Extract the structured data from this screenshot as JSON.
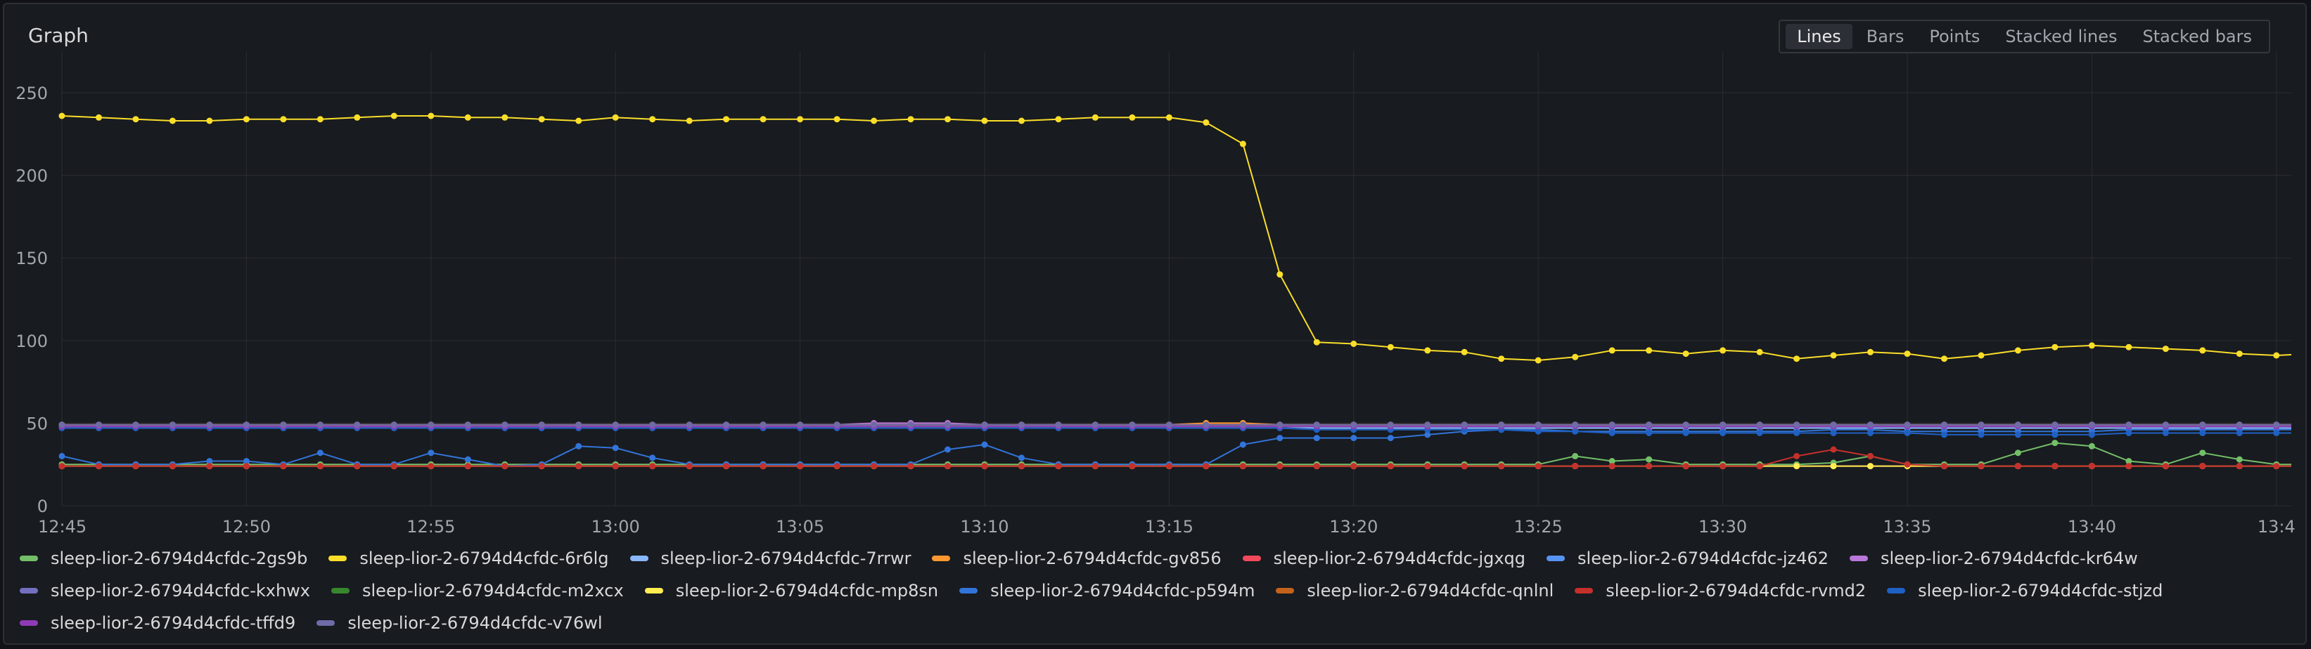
{
  "panel": {
    "title": "Graph"
  },
  "view_modes": [
    {
      "label": "Lines",
      "active": true
    },
    {
      "label": "Bars",
      "active": false
    },
    {
      "label": "Points",
      "active": false
    },
    {
      "label": "Stacked lines",
      "active": false
    },
    {
      "label": "Stacked bars",
      "active": false
    }
  ],
  "chart_data": {
    "type": "line",
    "title": "",
    "xlabel": "",
    "ylabel": "",
    "ylim": [
      0,
      270
    ],
    "y_ticks": [
      0,
      50,
      100,
      150,
      200,
      250
    ],
    "x_range": [
      "12:45",
      "13:44"
    ],
    "x_tick_labels": [
      "12:45",
      "12:50",
      "12:55",
      "13:00",
      "13:05",
      "13:10",
      "13:15",
      "13:20",
      "13:25",
      "13:30",
      "13:35",
      "13:40",
      "13:4"
    ],
    "x_interval_minutes": 1,
    "grid": true,
    "legend_position": "bottom",
    "series": [
      {
        "name": "sleep-lior-2-6794d4cfdc-2gs9b",
        "color": "#73bf69",
        "values": [
          25,
          25,
          25,
          25,
          25,
          25,
          25,
          25,
          25,
          25,
          25,
          25,
          25,
          25,
          25,
          25,
          25,
          25,
          25,
          25,
          25,
          25,
          25,
          25,
          25,
          25,
          25,
          25,
          25,
          25,
          25,
          25,
          25,
          25,
          25,
          25,
          25,
          25,
          25,
          25,
          25,
          30,
          27,
          28,
          25,
          25,
          25,
          25,
          26,
          30,
          25,
          25,
          25,
          32,
          38,
          36,
          27,
          25,
          32,
          28,
          25,
          25,
          25,
          25,
          25,
          25
        ]
      },
      {
        "name": "sleep-lior-2-6794d4cfdc-6r6lg",
        "color": "#fade2a",
        "values": [
          236,
          235,
          234,
          233,
          233,
          234,
          234,
          234,
          235,
          236,
          236,
          235,
          235,
          234,
          233,
          235,
          234,
          233,
          234,
          234,
          234,
          234,
          233,
          234,
          234,
          233,
          233,
          234,
          235,
          235,
          235,
          232,
          219,
          140,
          99,
          98,
          96,
          94,
          93,
          89,
          88,
          90,
          94,
          94,
          92,
          94,
          93,
          89,
          91,
          93,
          92,
          89,
          91,
          94,
          96,
          97,
          96,
          95,
          94,
          92,
          91,
          92,
          93,
          92,
          91,
          91
        ]
      },
      {
        "name": "sleep-lior-2-6794d4cfdc-7rrwr",
        "color": "#8ab8ff",
        "values": [
          48,
          48,
          48,
          48,
          48,
          48,
          48,
          48,
          48,
          48,
          48,
          48,
          48,
          48,
          48,
          48,
          48,
          48,
          48,
          48,
          48,
          48,
          48,
          48,
          48,
          48,
          48,
          48,
          48,
          48,
          48,
          48,
          48,
          48,
          47,
          47,
          47,
          47,
          47,
          47,
          47,
          47,
          47,
          47,
          47,
          47,
          47,
          47,
          47,
          47,
          47,
          47,
          47,
          47,
          47,
          47,
          47,
          47,
          47,
          47,
          47,
          47,
          47,
          47,
          47,
          47
        ]
      },
      {
        "name": "sleep-lior-2-6794d4cfdc-gv856",
        "color": "#ff9830",
        "values": [
          49,
          49,
          49,
          49,
          49,
          49,
          49,
          49,
          49,
          49,
          49,
          49,
          49,
          49,
          49,
          49,
          49,
          49,
          49,
          49,
          49,
          49,
          49,
          49,
          49,
          49,
          49,
          49,
          49,
          49,
          49,
          50,
          50,
          49,
          49,
          49,
          49,
          49,
          49,
          49,
          49,
          49,
          49,
          49,
          49,
          49,
          49,
          49,
          49,
          49,
          49,
          49,
          49,
          49,
          49,
          49,
          49,
          49,
          49,
          49,
          49,
          49,
          49,
          49,
          49,
          49
        ]
      },
      {
        "name": "sleep-lior-2-6794d4cfdc-jgxqg",
        "color": "#f2495c",
        "values": [
          24,
          24,
          24,
          24,
          24,
          24,
          24,
          24,
          24,
          24,
          24,
          24,
          24,
          24,
          24,
          24,
          24,
          24,
          24,
          24,
          24,
          24,
          24,
          24,
          24,
          24,
          24,
          24,
          24,
          24,
          24,
          24,
          24,
          24,
          24,
          24,
          24,
          24,
          24,
          24,
          24,
          24,
          24,
          24,
          24,
          24,
          24,
          24,
          24,
          24,
          24,
          24,
          24,
          24,
          24,
          24,
          24,
          24,
          24,
          24,
          24,
          24,
          24,
          24,
          24,
          24
        ]
      },
      {
        "name": "sleep-lior-2-6794d4cfdc-jz462",
        "color": "#5794f2",
        "values": [
          48,
          48,
          48,
          48,
          48,
          48,
          48,
          48,
          48,
          48,
          48,
          48,
          48,
          48,
          48,
          48,
          48,
          48,
          48,
          48,
          48,
          48,
          48,
          48,
          48,
          48,
          48,
          48,
          48,
          48,
          48,
          48,
          48,
          48,
          48,
          48,
          48,
          48,
          48,
          48,
          48,
          48,
          48,
          48,
          48,
          48,
          48,
          48,
          48,
          48,
          48,
          48,
          48,
          48,
          48,
          48,
          48,
          48,
          48,
          48,
          48,
          48,
          48,
          48,
          48,
          48
        ]
      },
      {
        "name": "sleep-lior-2-6794d4cfdc-kr64w",
        "color": "#b877d9",
        "values": [
          49,
          49,
          49,
          49,
          49,
          49,
          49,
          49,
          49,
          49,
          49,
          49,
          49,
          49,
          49,
          49,
          49,
          49,
          49,
          49,
          49,
          49,
          50,
          50,
          50,
          49,
          49,
          49,
          49,
          49,
          49,
          49,
          49,
          49,
          49,
          49,
          49,
          49,
          49,
          49,
          49,
          49,
          49,
          49,
          49,
          49,
          49,
          49,
          49,
          49,
          49,
          49,
          49,
          49,
          49,
          49,
          49,
          49,
          49,
          49,
          49,
          49,
          49,
          49,
          49,
          49
        ]
      },
      {
        "name": "sleep-lior-2-6794d4cfdc-kxhwx",
        "color": "#7370c0",
        "values": [
          48,
          48,
          48,
          48,
          48,
          48,
          48,
          48,
          48,
          48,
          48,
          48,
          48,
          48,
          48,
          48,
          48,
          48,
          48,
          48,
          48,
          48,
          49,
          49,
          49,
          49,
          49,
          48,
          48,
          48,
          48,
          48,
          48,
          48,
          48,
          48,
          48,
          48,
          48,
          48,
          48,
          48,
          48,
          48,
          48,
          48,
          48,
          48,
          48,
          48,
          48,
          48,
          48,
          48,
          48,
          48,
          48,
          48,
          48,
          48,
          48,
          48,
          48,
          48,
          48,
          48
        ]
      },
      {
        "name": "sleep-lior-2-6794d4cfdc-m2xcx",
        "color": "#37872d",
        "values": [
          48,
          48,
          48,
          48,
          48,
          48,
          48,
          48,
          48,
          48,
          48,
          48,
          48,
          48,
          48,
          48,
          48,
          48,
          48,
          48,
          48,
          48,
          48,
          48,
          48,
          48,
          48,
          48,
          48,
          48,
          48,
          48,
          48,
          48,
          48,
          48,
          48,
          48,
          48,
          48,
          48,
          48,
          48,
          48,
          48,
          48,
          48,
          48,
          48,
          48,
          48,
          48,
          48,
          48,
          48,
          48,
          48,
          48,
          48,
          48,
          48,
          48,
          48,
          48,
          48,
          48
        ]
      },
      {
        "name": "sleep-lior-2-6794d4cfdc-mp8sn",
        "color": "#ffee52",
        "values": [
          24,
          24,
          24,
          24,
          24,
          24,
          24,
          24,
          24,
          24,
          24,
          24,
          24,
          24,
          24,
          24,
          24,
          24,
          24,
          24,
          24,
          24,
          24,
          24,
          24,
          24,
          24,
          24,
          24,
          24,
          24,
          24,
          24,
          24,
          24,
          24,
          24,
          24,
          24,
          24,
          24,
          24,
          24,
          24,
          24,
          24,
          24,
          24,
          24,
          24,
          24,
          24,
          24,
          24,
          24,
          24,
          24,
          24,
          24,
          24,
          24,
          24,
          24,
          24,
          24,
          24
        ]
      },
      {
        "name": "sleep-lior-2-6794d4cfdc-p594m",
        "color": "#3274d9",
        "values": [
          30,
          25,
          25,
          25,
          27,
          27,
          25,
          32,
          25,
          25,
          32,
          28,
          24,
          25,
          36,
          35,
          29,
          25,
          25,
          25,
          25,
          25,
          25,
          25,
          34,
          37,
          29,
          25,
          25,
          25,
          25,
          25,
          37,
          41,
          41,
          41,
          41,
          43,
          45,
          46,
          46,
          45,
          45,
          45,
          45,
          45,
          45,
          45,
          46,
          46,
          45,
          45,
          45,
          45,
          45,
          45,
          46,
          46,
          46,
          46,
          46,
          46,
          46,
          46,
          46,
          46
        ]
      },
      {
        "name": "sleep-lior-2-6794d4cfdc-qnlnl",
        "color": "#c4621c",
        "values": [
          49,
          49,
          49,
          49,
          49,
          49,
          49,
          49,
          49,
          49,
          49,
          49,
          49,
          49,
          49,
          49,
          49,
          49,
          49,
          49,
          49,
          49,
          49,
          49,
          49,
          49,
          49,
          49,
          49,
          49,
          49,
          49,
          49,
          49,
          49,
          49,
          49,
          49,
          49,
          49,
          49,
          49,
          49,
          49,
          49,
          49,
          49,
          49,
          49,
          49,
          49,
          49,
          49,
          49,
          49,
          49,
          49,
          49,
          49,
          49,
          49,
          49,
          49,
          49,
          49,
          49
        ]
      },
      {
        "name": "sleep-lior-2-6794d4cfdc-rvmd2",
        "color": "#c4302b",
        "values": [
          24,
          24,
          24,
          24,
          24,
          24,
          24,
          24,
          24,
          24,
          24,
          24,
          24,
          24,
          24,
          24,
          24,
          24,
          24,
          24,
          24,
          24,
          24,
          24,
          24,
          24,
          24,
          24,
          24,
          24,
          24,
          24,
          24,
          24,
          24,
          24,
          24,
          24,
          24,
          24,
          24,
          24,
          24,
          24,
          24,
          24,
          24,
          30,
          34,
          30,
          25,
          24,
          24,
          24,
          24,
          24,
          24,
          24,
          24,
          24,
          24,
          24,
          24,
          25,
          24,
          24
        ]
      },
      {
        "name": "sleep-lior-2-6794d4cfdc-stjzd",
        "color": "#1f60c4",
        "values": [
          47,
          47,
          47,
          47,
          47,
          47,
          47,
          47,
          47,
          47,
          47,
          47,
          47,
          47,
          47,
          47,
          47,
          47,
          47,
          47,
          47,
          47,
          47,
          47,
          47,
          47,
          47,
          47,
          47,
          47,
          47,
          47,
          47,
          47,
          46,
          46,
          46,
          46,
          46,
          46,
          45,
          45,
          44,
          44,
          44,
          44,
          44,
          44,
          44,
          44,
          44,
          43,
          43,
          43,
          43,
          43,
          44,
          44,
          44,
          44,
          44,
          44,
          44,
          44,
          44,
          44
        ]
      },
      {
        "name": "sleep-lior-2-6794d4cfdc-tffd9",
        "color": "#8f3bb8",
        "values": [
          48,
          48,
          48,
          48,
          48,
          48,
          48,
          48,
          48,
          48,
          48,
          48,
          48,
          48,
          48,
          48,
          48,
          48,
          48,
          48,
          48,
          48,
          48,
          48,
          48,
          48,
          48,
          48,
          48,
          48,
          48,
          48,
          48,
          48,
          48,
          48,
          48,
          48,
          48,
          48,
          48,
          48,
          48,
          48,
          48,
          48,
          48,
          48,
          48,
          48,
          48,
          48,
          48,
          48,
          48,
          48,
          48,
          48,
          48,
          48,
          48,
          48,
          48,
          48,
          48,
          48
        ]
      },
      {
        "name": "sleep-lior-2-6794d4cfdc-v76wl",
        "color": "#6e6ba8",
        "values": [
          49,
          49,
          49,
          49,
          49,
          49,
          49,
          49,
          49,
          49,
          49,
          49,
          49,
          49,
          49,
          49,
          49,
          49,
          49,
          49,
          49,
          49,
          49,
          49,
          49,
          49,
          49,
          49,
          49,
          49,
          49,
          49,
          49,
          49,
          49,
          49,
          49,
          49,
          49,
          49,
          49,
          49,
          49,
          49,
          49,
          49,
          49,
          49,
          49,
          49,
          49,
          49,
          49,
          49,
          49,
          49,
          49,
          49,
          49,
          49,
          49,
          49,
          49,
          49,
          49,
          49
        ]
      }
    ]
  }
}
